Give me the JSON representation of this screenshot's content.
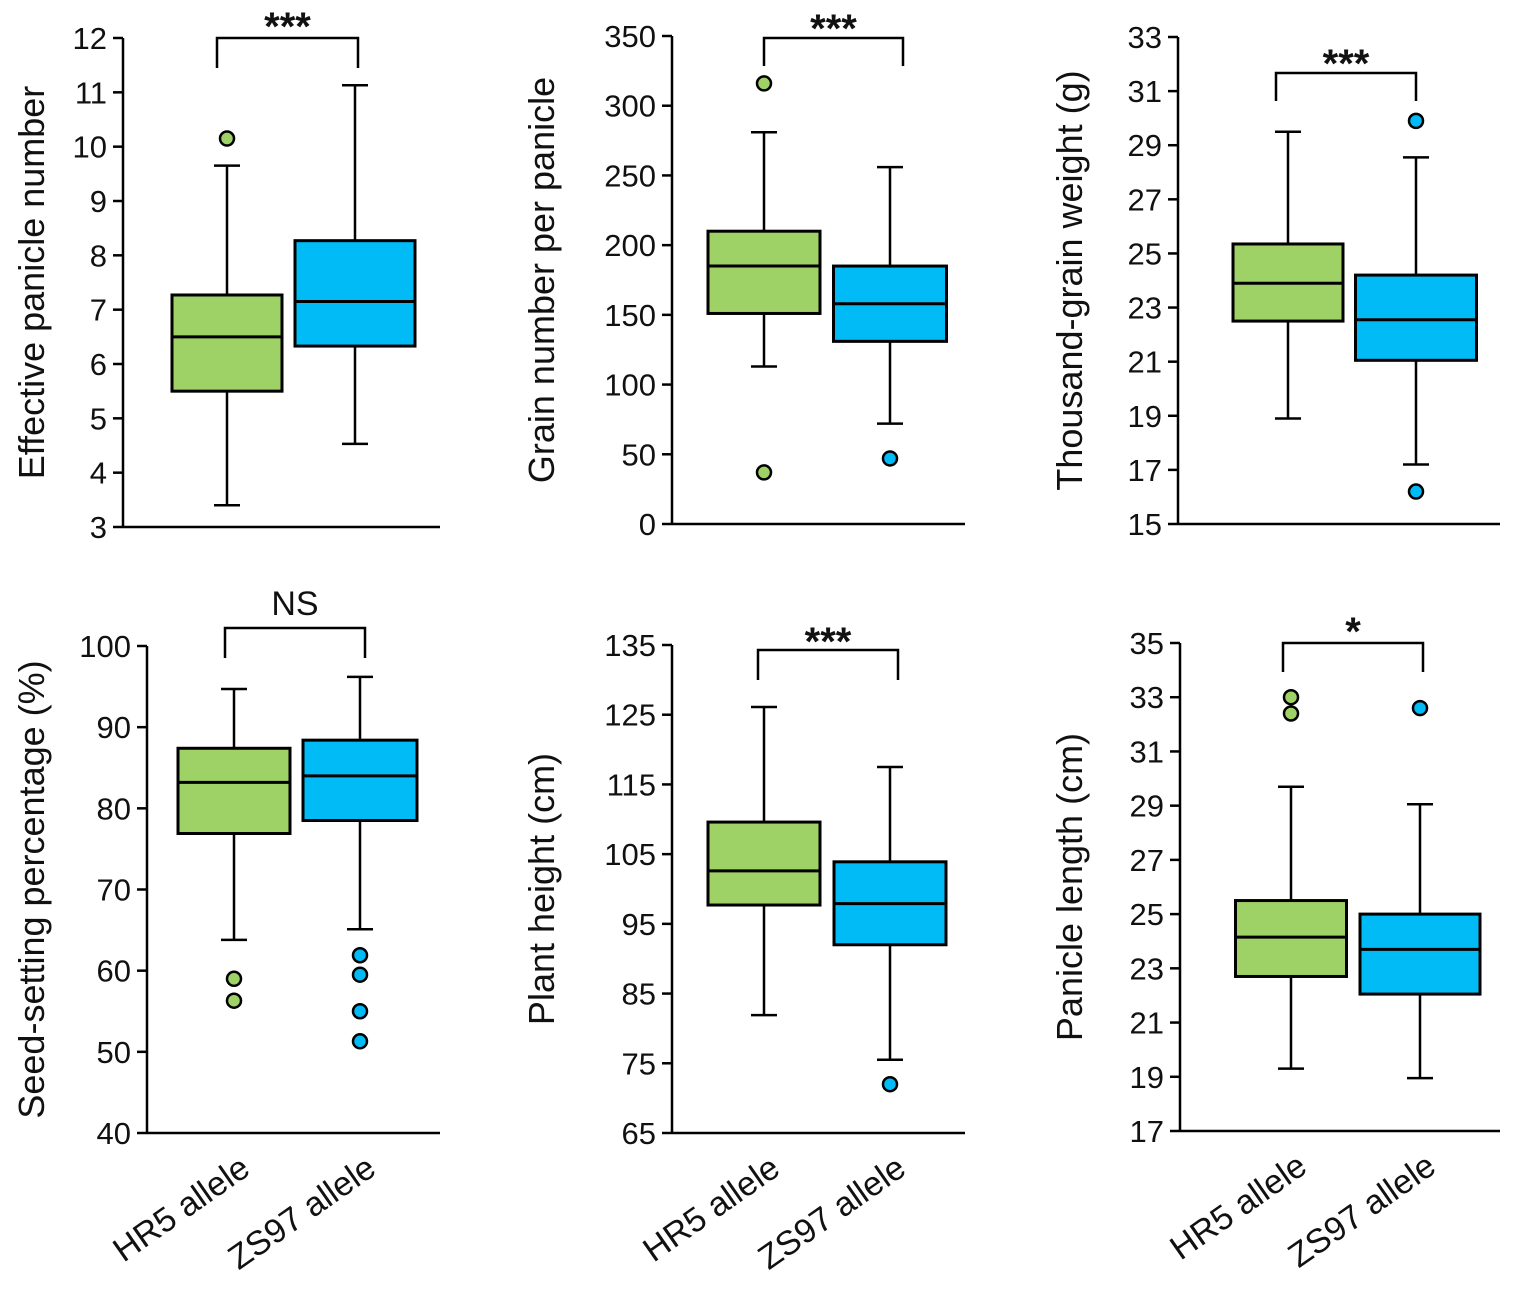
{
  "colors": {
    "HR5 allele": "#9fd266",
    "ZS97 allele": "#00bbf5"
  },
  "chart_data": [
    {
      "type": "box",
      "ylabel": "Effective panicle number",
      "ylim": [
        3,
        12
      ],
      "yticks": [
        3,
        4,
        5,
        6,
        7,
        8,
        9,
        10,
        11,
        12
      ],
      "categories": [
        "HR5 allele",
        "ZS97 allele"
      ],
      "significance": "***",
      "series": [
        {
          "name": "HR5 allele",
          "whisker_low": 3.4,
          "q1": 5.5,
          "median": 6.5,
          "q3": 7.27,
          "whisker_high": 9.65,
          "outliers": [
            10.15
          ]
        },
        {
          "name": "ZS97 allele",
          "whisker_low": 4.53,
          "q1": 6.33,
          "median": 7.15,
          "q3": 8.27,
          "whisker_high": 11.13,
          "outliers": []
        }
      ]
    },
    {
      "type": "box",
      "ylabel": "Grain number per panicle",
      "ylim": [
        0,
        350
      ],
      "yticks": [
        0,
        50,
        100,
        150,
        200,
        250,
        300,
        350
      ],
      "categories": [
        "HR5 allele",
        "ZS97 allele"
      ],
      "significance": "***",
      "series": [
        {
          "name": "HR5 allele",
          "whisker_low": 113,
          "q1": 151,
          "median": 185,
          "q3": 210,
          "whisker_high": 281,
          "outliers": [
            316,
            37
          ]
        },
        {
          "name": "ZS97 allele",
          "whisker_low": 72,
          "q1": 131,
          "median": 158,
          "q3": 185,
          "whisker_high": 256,
          "outliers": [
            47
          ]
        }
      ]
    },
    {
      "type": "box",
      "ylabel": "Thousand-grain weight (g)",
      "ylim": [
        15,
        33
      ],
      "yticks": [
        15,
        17,
        19,
        21,
        23,
        25,
        27,
        29,
        31,
        33
      ],
      "categories": [
        "HR5 allele",
        "ZS97 allele"
      ],
      "significance": "***",
      "series": [
        {
          "name": "HR5 allele",
          "whisker_low": 18.9,
          "q1": 22.5,
          "median": 23.9,
          "q3": 25.35,
          "whisker_high": 29.5,
          "outliers": []
        },
        {
          "name": "ZS97 allele",
          "whisker_low": 17.2,
          "q1": 21.05,
          "median": 22.55,
          "q3": 24.2,
          "whisker_high": 28.55,
          "outliers": [
            29.9,
            16.2
          ]
        }
      ]
    },
    {
      "type": "box",
      "ylabel": "Seed-setting percentage (%)",
      "ylim": [
        40,
        100
      ],
      "yticks": [
        40,
        50,
        60,
        70,
        80,
        90,
        100
      ],
      "categories": [
        "HR5 allele",
        "ZS97 allele"
      ],
      "significance": "NS",
      "series": [
        {
          "name": "HR5 allele",
          "whisker_low": 63.8,
          "q1": 76.9,
          "median": 83.2,
          "q3": 87.4,
          "whisker_high": 94.7,
          "outliers": [
            59,
            56.3
          ]
        },
        {
          "name": "ZS97 allele",
          "whisker_low": 65.1,
          "q1": 78.5,
          "median": 84,
          "q3": 88.4,
          "whisker_high": 96.2,
          "outliers": [
            61.9,
            59.5,
            55,
            51.3
          ]
        }
      ]
    },
    {
      "type": "box",
      "ylabel": "Plant height (cm)",
      "ylim": [
        65,
        135
      ],
      "yticks": [
        65,
        75,
        85,
        95,
        105,
        115,
        125,
        135
      ],
      "categories": [
        "HR5 allele",
        "ZS97 allele"
      ],
      "significance": "***",
      "series": [
        {
          "name": "HR5 allele",
          "whisker_low": 81.9,
          "q1": 97.7,
          "median": 102.6,
          "q3": 109.6,
          "whisker_high": 126.1,
          "outliers": []
        },
        {
          "name": "ZS97 allele",
          "whisker_low": 75.5,
          "q1": 92,
          "median": 97.9,
          "q3": 103.9,
          "whisker_high": 117.5,
          "outliers": [
            72
          ]
        }
      ]
    },
    {
      "type": "box",
      "ylabel": "Panicle length (cm)",
      "ylim": [
        17,
        35
      ],
      "yticks": [
        17,
        19,
        21,
        23,
        25,
        27,
        29,
        31,
        33,
        35
      ],
      "categories": [
        "HR5 allele",
        "ZS97 allele"
      ],
      "significance": "*",
      "series": [
        {
          "name": "HR5 allele",
          "whisker_low": 19.3,
          "q1": 22.7,
          "median": 24.15,
          "q3": 25.5,
          "whisker_high": 29.7,
          "outliers": [
            33,
            32.4
          ]
        },
        {
          "name": "ZS97 allele",
          "whisker_low": 18.95,
          "q1": 22.05,
          "median": 23.7,
          "q3": 25,
          "whisker_high": 29.05,
          "outliers": [
            32.6
          ]
        }
      ]
    }
  ]
}
